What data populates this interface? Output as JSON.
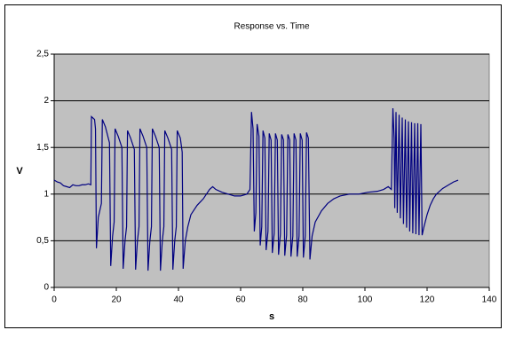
{
  "chart_data": {
    "type": "line",
    "title": "Response vs. Time",
    "x_label": "s",
    "y_label": "V",
    "color": "#000080",
    "grid": true,
    "xlim": [
      0,
      140
    ],
    "xticks": [
      0,
      20,
      40,
      60,
      80,
      100,
      120,
      140
    ],
    "ylim": [
      0,
      2.5
    ],
    "yticks": [
      0,
      {
        "value": 0.5,
        "label": "0,5"
      },
      1,
      {
        "value": 1.5,
        "label": "1,5"
      },
      2,
      {
        "value": 2.5,
        "label": "2,5"
      }
    ],
    "x": [
      0,
      1,
      2,
      3,
      4,
      5,
      6,
      7,
      8,
      9,
      10,
      11,
      11.8,
      12,
      13,
      13.3,
      13.6,
      14.2,
      15.2,
      15.5,
      16.5,
      17.8,
      18.2,
      18.8,
      19.3,
      19.6,
      20.6,
      21.8,
      22.2,
      22.8,
      23.3,
      23.6,
      24.6,
      25.8,
      26.2,
      26.8,
      27.3,
      27.6,
      28.6,
      29.8,
      30.2,
      30.8,
      31.3,
      31.6,
      32.6,
      33.8,
      34.2,
      34.8,
      35.3,
      35.6,
      36.6,
      37.8,
      38.2,
      38.8,
      39.3,
      39.6,
      40.6,
      41.2,
      41.5,
      42.2,
      43,
      44,
      46,
      48,
      50,
      51,
      52,
      54,
      56,
      58,
      60,
      62,
      63,
      63.5,
      64,
      64.4,
      64.9,
      65.3,
      65.9,
      66.3,
      66.8,
      67.2,
      67.8,
      68.2,
      68.8,
      69.2,
      69.8,
      70.2,
      70.8,
      71.2,
      71.8,
      72.2,
      72.8,
      73.2,
      73.8,
      74.2,
      74.8,
      75.2,
      75.8,
      76.2,
      76.8,
      77.2,
      77.8,
      78.2,
      78.8,
      79.2,
      79.8,
      80.2,
      80.8,
      81.2,
      81.8,
      82.3,
      83,
      84,
      86,
      88,
      90,
      92,
      95,
      98,
      101,
      104,
      106,
      107.5,
      108.5,
      109,
      109.4,
      109.6,
      110,
      110.4,
      111,
      111.4,
      112,
      112.4,
      113,
      113.4,
      114,
      114.4,
      115,
      115.4,
      116,
      116.4,
      117,
      117.4,
      118,
      118.4,
      119,
      120,
      121,
      122,
      123,
      125,
      127,
      128.5,
      130
    ],
    "values": [
      1.15,
      1.13,
      1.12,
      1.09,
      1.08,
      1.07,
      1.1,
      1.09,
      1.09,
      1.1,
      1.1,
      1.11,
      1.1,
      1.83,
      1.8,
      1.7,
      0.42,
      0.75,
      0.9,
      1.8,
      1.72,
      1.55,
      0.23,
      0.55,
      0.7,
      1.7,
      1.62,
      1.5,
      0.2,
      0.5,
      0.65,
      1.68,
      1.6,
      1.48,
      0.19,
      0.5,
      0.65,
      1.7,
      1.62,
      1.5,
      0.18,
      0.5,
      0.65,
      1.7,
      1.62,
      1.5,
      0.18,
      0.5,
      0.65,
      1.68,
      1.6,
      1.48,
      0.19,
      0.5,
      0.65,
      1.68,
      1.6,
      1.45,
      0.2,
      0.5,
      0.65,
      0.78,
      0.88,
      0.95,
      1.05,
      1.08,
      1.05,
      1.02,
      1.0,
      0.98,
      0.98,
      1.0,
      1.05,
      1.88,
      1.7,
      0.6,
      0.8,
      1.75,
      1.62,
      0.45,
      0.65,
      1.68,
      1.6,
      0.4,
      0.6,
      1.65,
      1.58,
      0.37,
      0.58,
      1.65,
      1.58,
      0.35,
      0.57,
      1.64,
      1.58,
      0.34,
      0.56,
      1.64,
      1.58,
      0.33,
      0.55,
      1.65,
      1.58,
      0.33,
      0.55,
      1.65,
      1.58,
      0.32,
      0.55,
      1.66,
      1.6,
      0.3,
      0.55,
      0.7,
      0.82,
      0.9,
      0.95,
      0.98,
      1.0,
      1.0,
      1.02,
      1.03,
      1.05,
      1.08,
      1.05,
      1.92,
      1.6,
      0.85,
      1.88,
      0.8,
      1.85,
      0.74,
      1.82,
      0.68,
      1.8,
      0.64,
      1.78,
      0.6,
      1.77,
      0.58,
      1.76,
      0.57,
      1.76,
      0.56,
      1.75,
      0.56,
      0.65,
      0.78,
      0.88,
      0.95,
      1.0,
      1.06,
      1.1,
      1.13,
      1.15
    ]
  }
}
